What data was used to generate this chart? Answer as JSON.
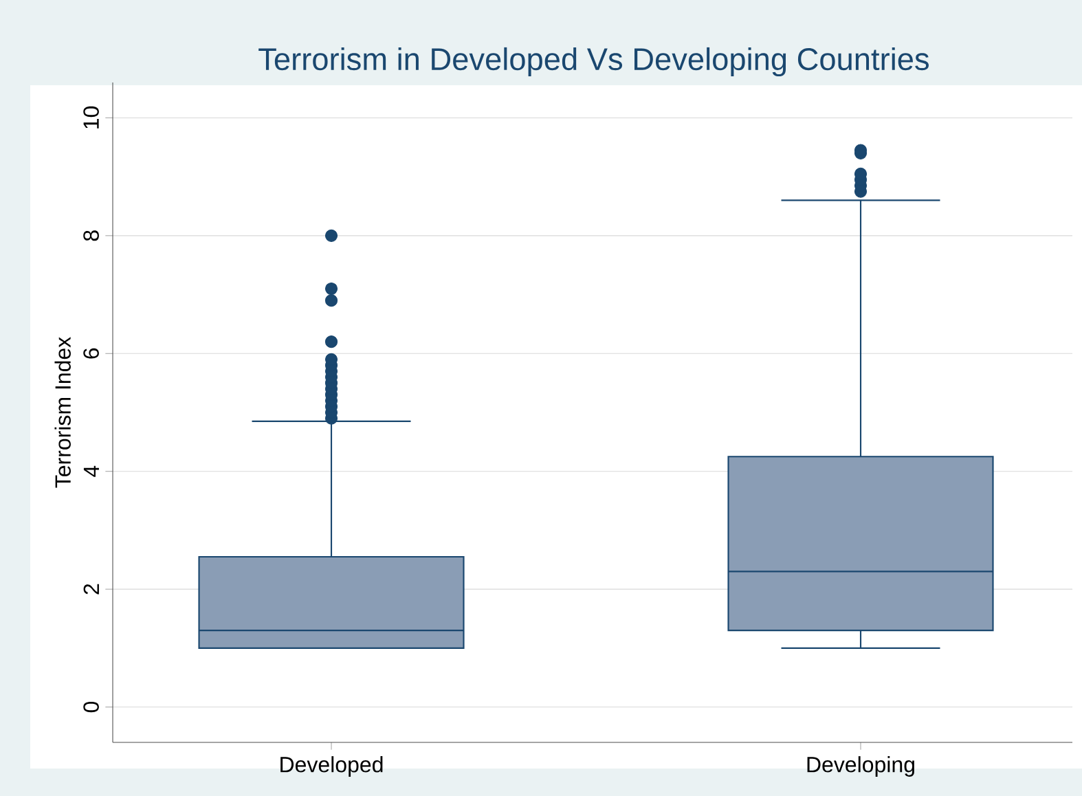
{
  "chart_data": {
    "type": "box",
    "title": "Terrorism in Developed Vs Developing Countries",
    "ylabel": "Terrorism Index",
    "categories": [
      "Developed",
      "Developing"
    ],
    "boxes": [
      {
        "low": 1.0,
        "q1": 1.0,
        "median": 1.3,
        "q3": 2.55,
        "high": 4.85,
        "outliers": [
          4.9,
          5.0,
          5.1,
          5.2,
          5.3,
          5.4,
          5.5,
          5.6,
          5.7,
          5.8,
          5.9,
          6.2,
          6.9,
          7.1,
          8.0
        ]
      },
      {
        "low": 1.0,
        "q1": 1.3,
        "median": 2.3,
        "q3": 4.25,
        "high": 8.6,
        "outliers": [
          8.75,
          8.85,
          8.95,
          9.05,
          9.4,
          9.45
        ]
      }
    ],
    "color": "#8a9db5",
    "ylim": [
      -0.6,
      10.6
    ],
    "yticks": [
      0,
      2,
      4,
      6,
      8,
      10
    ],
    "grid": "y"
  }
}
